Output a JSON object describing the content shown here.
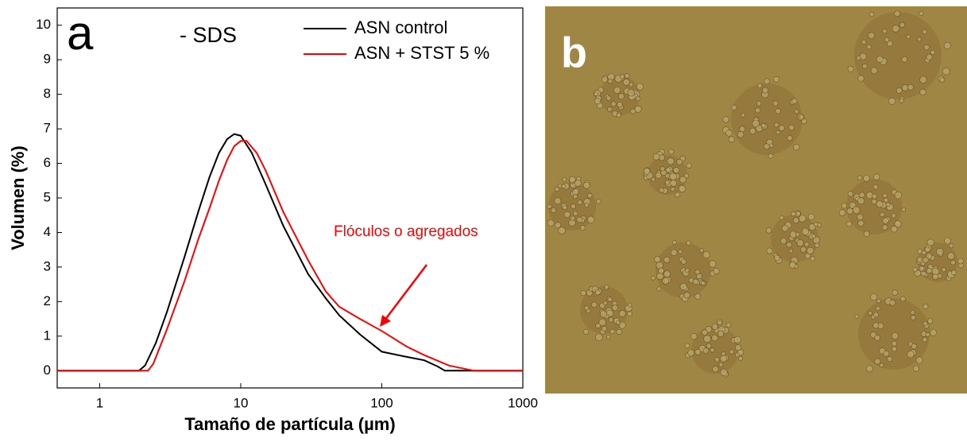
{
  "chart_data": {
    "type": "line",
    "panel_label": "a",
    "subtitle": "- SDS",
    "x_label": "Tamaño de partícula (µm)",
    "y_label": "Volumen (%)",
    "log_x": true,
    "xlim": [
      0.5,
      1000
    ],
    "xticks": [
      1,
      10,
      100,
      1000
    ],
    "ylim": [
      -0.5,
      10.5
    ],
    "yticks": [
      0,
      1,
      2,
      3,
      4,
      5,
      6,
      7,
      8,
      9,
      10
    ],
    "legend": "upper right",
    "series": [
      {
        "name": "ASN control",
        "color": "#000000",
        "x": [
          0.5,
          1.9,
          2.1,
          2.5,
          3,
          4,
          5,
          6,
          7,
          8,
          9,
          10,
          12,
          15,
          20,
          30,
          40,
          50,
          70,
          100,
          150,
          200,
          250,
          280,
          1000
        ],
        "values": [
          0,
          0,
          0.15,
          0.8,
          1.7,
          3.3,
          4.6,
          5.6,
          6.3,
          6.7,
          6.85,
          6.8,
          6.3,
          5.4,
          4.2,
          2.8,
          2.1,
          1.6,
          1.05,
          0.55,
          0.4,
          0.3,
          0.12,
          0,
          0
        ]
      },
      {
        "name": "ASN + STST 5 %",
        "color": "#ff0000",
        "x": [
          0.5,
          2.2,
          2.4,
          3,
          4,
          5,
          6,
          7,
          8,
          9,
          10,
          11,
          13,
          15,
          20,
          30,
          40,
          50,
          70,
          100,
          150,
          200,
          300,
          450,
          1000
        ],
        "values": [
          0,
          0,
          0.2,
          1.2,
          2.6,
          3.8,
          4.7,
          5.5,
          6.1,
          6.5,
          6.65,
          6.65,
          6.3,
          5.8,
          4.6,
          3.2,
          2.3,
          1.85,
          1.5,
          1.15,
          0.7,
          0.45,
          0.15,
          0,
          0
        ]
      }
    ],
    "annotation": {
      "text": "Flóculos o agregados",
      "color": "#ff0000"
    }
  },
  "image_panel": {
    "label": "b"
  }
}
